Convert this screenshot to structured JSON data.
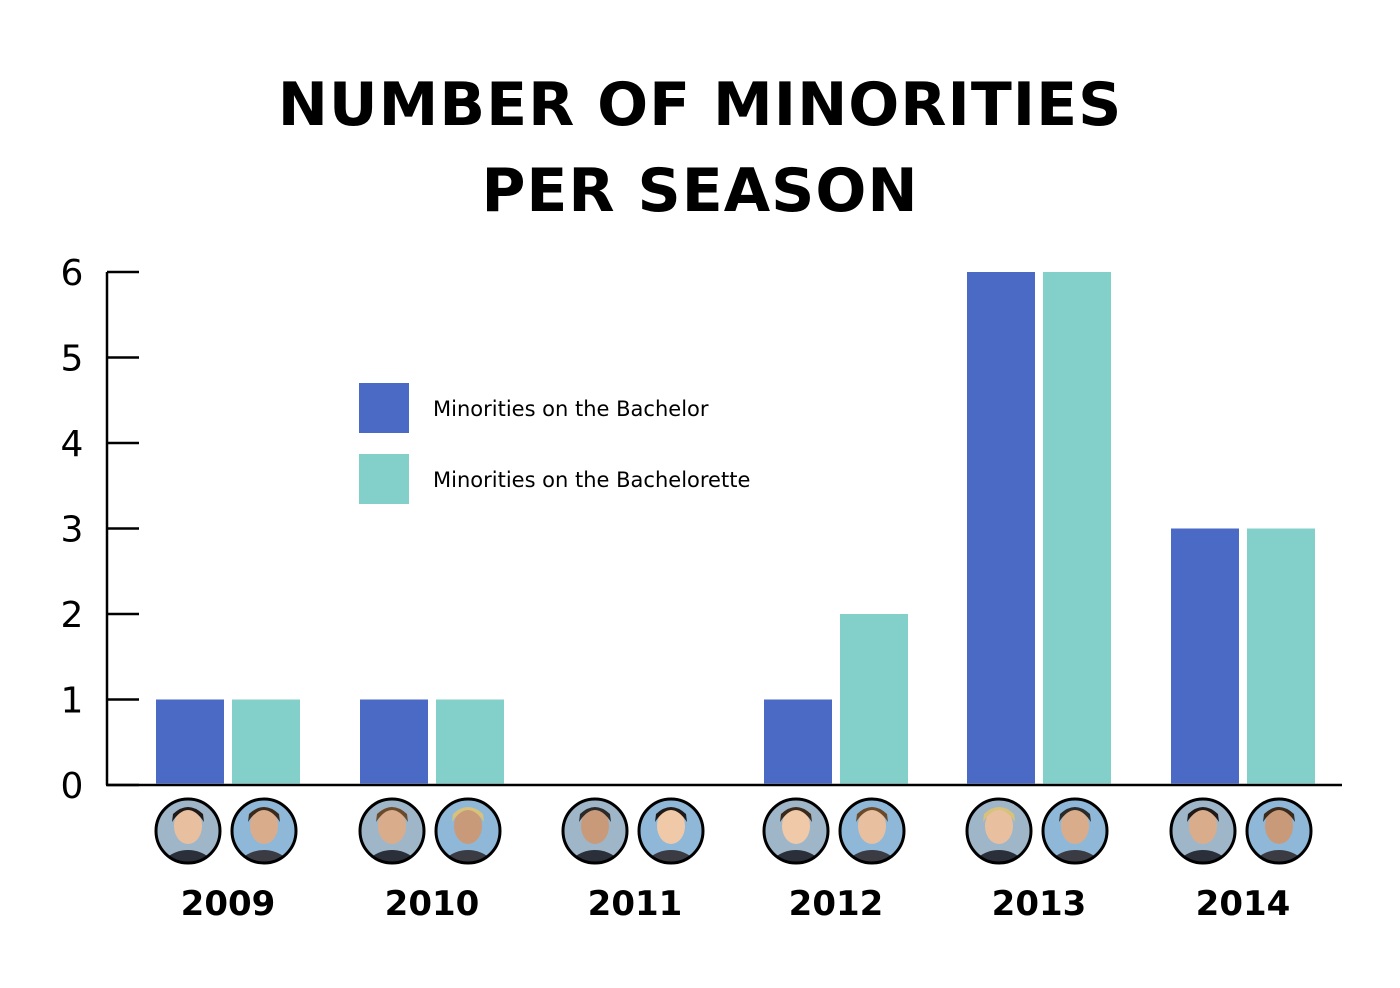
{
  "chart_data": {
    "type": "bar",
    "title_lines": [
      "NUMBER OF MINORITIES",
      "PER SEASON"
    ],
    "categories": [
      "2009",
      "2010",
      "2011",
      "2012",
      "2013",
      "2014"
    ],
    "series": [
      {
        "name": "Minorities on the Bachelor",
        "values": [
          1,
          1,
          0,
          1,
          6,
          3
        ],
        "color": "#4a6ac6"
      },
      {
        "name": "Minorities on the Bachelorette",
        "values": [
          1,
          1,
          0,
          2,
          6,
          3
        ],
        "color": "#83d0cb"
      }
    ],
    "yticks": [
      "0",
      "1",
      "2",
      "3",
      "4",
      "5",
      "6"
    ],
    "ylim": [
      0,
      6
    ],
    "grid": false,
    "legend_position": "top-left",
    "xlabel": "",
    "ylabel": ""
  }
}
